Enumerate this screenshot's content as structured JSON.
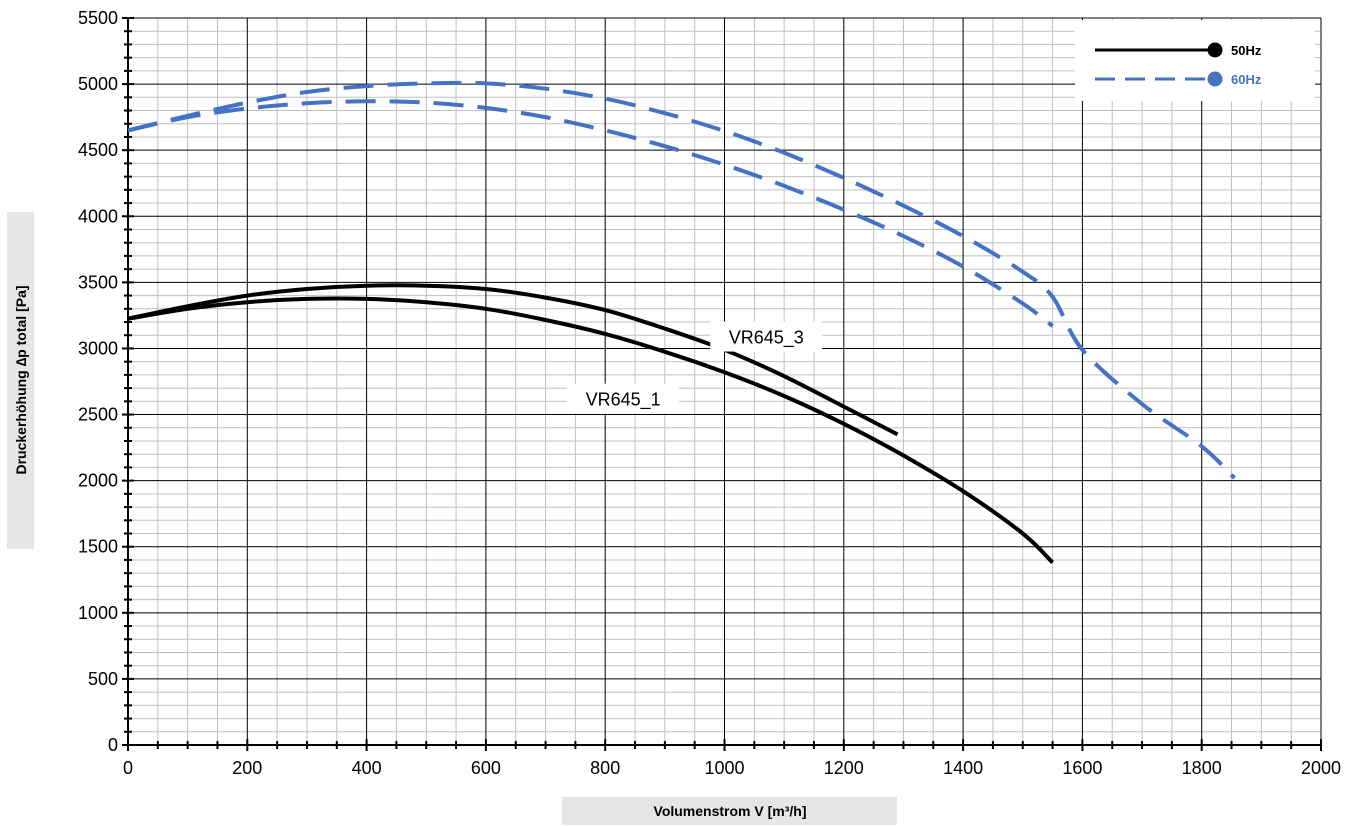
{
  "chart_data": {
    "type": "line",
    "title": "",
    "xlabel": "Volumenstrom V [m³/h]",
    "ylabel": "Druckerhöhung ∆p total [Pa]",
    "xlim": [
      0,
      2000
    ],
    "ylim": [
      0,
      5500
    ],
    "x_ticks": [
      "0",
      "200",
      "400",
      "600",
      "800",
      "1000",
      "1200",
      "1400",
      "1600",
      "1800",
      "2000"
    ],
    "y_ticks": [
      "0",
      "500",
      "1000",
      "1500",
      "2000",
      "2500",
      "3000",
      "3500",
      "4000",
      "4500",
      "5000",
      "5500"
    ],
    "grid": true,
    "legend_position": "top-right",
    "legend": [
      {
        "label": "50Hz",
        "color": "#000000",
        "style": "solid"
      },
      {
        "label": "60Hz",
        "color": "#4472C4",
        "style": "dashed"
      }
    ],
    "annotations": [
      {
        "text": "VR645_3",
        "x": 1070,
        "y": 3090
      },
      {
        "text": "VR645_1",
        "x": 830,
        "y": 2620
      }
    ],
    "series": [
      {
        "frequency": "50Hz",
        "curve": "VR645_1",
        "color": "#000000",
        "x": [
          0,
          100,
          200,
          300,
          400,
          500,
          600,
          700,
          800,
          900,
          1000,
          1100,
          1200,
          1300,
          1400,
          1500,
          1550
        ],
        "y": [
          3225,
          3300,
          3350,
          3375,
          3375,
          3350,
          3300,
          3215,
          3110,
          2975,
          2820,
          2640,
          2430,
          2190,
          1920,
          1600,
          1380
        ]
      },
      {
        "frequency": "50Hz",
        "curve": "VR645_3",
        "color": "#000000",
        "x": [
          0,
          100,
          200,
          300,
          400,
          500,
          600,
          700,
          800,
          900,
          1000,
          1100,
          1200,
          1290
        ],
        "y": [
          3225,
          3320,
          3400,
          3450,
          3475,
          3475,
          3450,
          3385,
          3290,
          3150,
          2990,
          2790,
          2560,
          2350
        ]
      },
      {
        "frequency": "60Hz",
        "curve": "VR645_1",
        "color": "#4472C4",
        "x": [
          0,
          100,
          200,
          300,
          400,
          500,
          600,
          700,
          800,
          900,
          1000,
          1100,
          1200,
          1300,
          1400,
          1500,
          1550
        ],
        "y": [
          4650,
          4750,
          4815,
          4855,
          4870,
          4860,
          4820,
          4750,
          4650,
          4530,
          4390,
          4230,
          4050,
          3850,
          3620,
          3340,
          3170
        ]
      },
      {
        "frequency": "60Hz",
        "curve": "VR645_3",
        "color": "#4472C4",
        "x": [
          0,
          100,
          200,
          300,
          400,
          500,
          600,
          700,
          800,
          900,
          1000,
          1100,
          1200,
          1300,
          1400,
          1500,
          1550,
          1600,
          1700,
          1800,
          1855
        ],
        "y": [
          4650,
          4760,
          4860,
          4940,
          4985,
          5005,
          5005,
          4965,
          4890,
          4780,
          4645,
          4480,
          4290,
          4080,
          3850,
          3580,
          3390,
          2990,
          2580,
          2260,
          2020
        ]
      }
    ]
  }
}
